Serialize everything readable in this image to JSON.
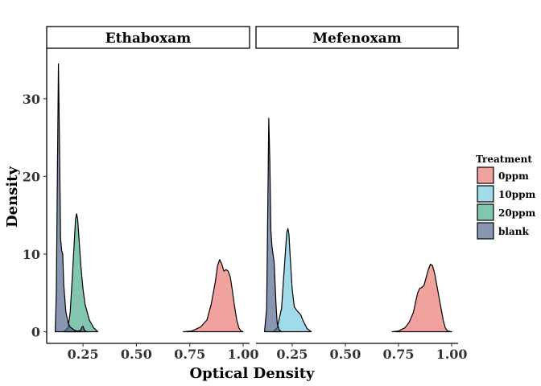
{
  "chart_data": {
    "type": "area",
    "subtype": "density",
    "xlabel": "Optical Density",
    "ylabel": "Density",
    "xlim": [
      0.08,
      1.03
    ],
    "ylim": [
      -1.5,
      36.5
    ],
    "x_ticks": [
      0.25,
      0.5,
      0.75,
      1.0
    ],
    "x_tick_labels": [
      "0.25",
      "0.50",
      "0.75",
      "1.00"
    ],
    "y_ticks": [
      0,
      10,
      20,
      30
    ],
    "y_tick_labels": [
      "0",
      "10",
      "20",
      "30"
    ],
    "grid": false,
    "legend": {
      "title": "Treatment",
      "position": "right",
      "entries": [
        {
          "name": "0ppm",
          "color": "#E8726A"
        },
        {
          "name": "10ppm",
          "color": "#6EC6DC"
        },
        {
          "name": "20ppm",
          "color": "#3FA787"
        },
        {
          "name": "blank",
          "color": "#4B5F8B"
        }
      ]
    },
    "panels": [
      {
        "title": "Ethaboxam",
        "series": [
          {
            "name": "0ppm",
            "x": [
              0.72,
              0.76,
              0.8,
              0.83,
              0.85,
              0.87,
              0.88,
              0.89,
              0.9,
              0.91,
              0.92,
              0.93,
              0.94,
              0.95,
              0.96,
              0.97,
              0.98,
              0.99,
              1.0
            ],
            "y": [
              0,
              0.1,
              0.6,
              1.5,
              3.5,
              6.5,
              8.5,
              9.3,
              8.7,
              7.8,
              8.0,
              7.8,
              7.0,
              5.2,
              3.2,
              1.5,
              0.5,
              0.1,
              0
            ]
          },
          {
            "name": "20ppm",
            "x": [
              0.16,
              0.18,
              0.19,
              0.2,
              0.21,
              0.215,
              0.22,
              0.225,
              0.23,
              0.24,
              0.25,
              0.26,
              0.27,
              0.28,
              0.29,
              0.3,
              0.32
            ],
            "y": [
              0,
              0.5,
              2.5,
              7,
              12,
              14.5,
              15.2,
              14.5,
              12.5,
              8.5,
              5.5,
              3.5,
              2.5,
              1.5,
              1.0,
              0.5,
              0
            ]
          },
          {
            "name": "blank",
            "x": [
              0.12,
              0.125,
              0.13,
              0.135,
              0.14,
              0.145,
              0.15,
              0.155,
              0.16,
              0.17,
              0.18,
              0.19,
              0.2,
              0.21,
              0.22,
              0.23,
              0.24,
              0.245,
              0.25,
              0.255,
              0.26,
              0.27
            ],
            "y": [
              0,
              5,
              20,
              34.5,
              24,
              12,
              10.5,
              10,
              6,
              2.5,
              1.2,
              0.6,
              0.4,
              0.2,
              0.1,
              0.1,
              0.2,
              0.6,
              0.7,
              0.3,
              0.1,
              0
            ]
          }
        ]
      },
      {
        "title": "Mefenoxam",
        "series": [
          {
            "name": "0ppm",
            "x": [
              0.72,
              0.75,
              0.78,
              0.8,
              0.82,
              0.83,
              0.84,
              0.85,
              0.86,
              0.87,
              0.88,
              0.89,
              0.9,
              0.91,
              0.92,
              0.93,
              0.94,
              0.95,
              0.96,
              0.97,
              0.98,
              1.0
            ],
            "y": [
              0,
              0.1,
              0.5,
              1.2,
              2.5,
              3.8,
              5.0,
              5.6,
              5.7,
              6.0,
              7.0,
              8.0,
              8.7,
              8.5,
              7.5,
              6.0,
              4.5,
              3.0,
              1.5,
              0.5,
              0.1,
              0
            ]
          },
          {
            "name": "10ppm",
            "x": [
              0.16,
              0.18,
              0.2,
              0.21,
              0.22,
              0.225,
              0.23,
              0.235,
              0.24,
              0.25,
              0.26,
              0.27,
              0.28,
              0.29,
              0.3,
              0.32,
              0.34
            ],
            "y": [
              0,
              0.5,
              3,
              7,
              11,
              12.8,
              13.3,
              12.5,
              10,
              5.5,
              3.2,
              2.8,
              2.5,
              2.2,
              1.5,
              0.4,
              0
            ]
          },
          {
            "name": "blank",
            "x": [
              0.12,
              0.13,
              0.135,
              0.14,
              0.145,
              0.15,
              0.155,
              0.16,
              0.165,
              0.17,
              0.175,
              0.18,
              0.19,
              0.2
            ],
            "y": [
              0,
              3,
              15,
              27.5,
              22,
              13,
              11,
              10,
              9,
              6,
              3,
              1,
              0.2,
              0
            ]
          }
        ]
      }
    ]
  }
}
